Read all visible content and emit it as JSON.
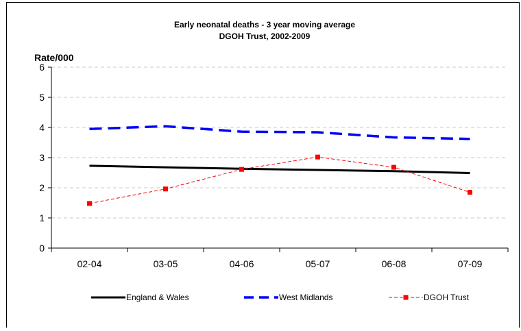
{
  "chart_data": {
    "type": "line",
    "title_line1": "Early neonatal deaths - 3 year moving average",
    "title_line2": "DGOH Trust, 2002-2009",
    "ylabel": "Rate/000",
    "xlabel": "",
    "categories": [
      "02-04",
      "03-05",
      "04-06",
      "05-07",
      "06-08",
      "07-09"
    ],
    "ylim": [
      0,
      6
    ],
    "yticks": [
      "0",
      "1",
      "2",
      "3",
      "4",
      "5",
      "6"
    ],
    "grid": "horizontal dashed",
    "legend_position": "bottom",
    "series": [
      {
        "name": "England & Wales",
        "values": [
          2.73,
          2.68,
          2.63,
          2.59,
          2.55,
          2.49
        ],
        "color": "#000000",
        "style": "solid"
      },
      {
        "name": "West Midlands",
        "values": [
          3.95,
          4.04,
          3.86,
          3.84,
          3.67,
          3.62
        ],
        "color": "#0000ff",
        "style": "dashed"
      },
      {
        "name": "DGOH Trust",
        "values": [
          1.48,
          1.96,
          2.61,
          3.02,
          2.68,
          1.85
        ],
        "color": "#ff0000",
        "style": "dashed-markers"
      }
    ]
  }
}
